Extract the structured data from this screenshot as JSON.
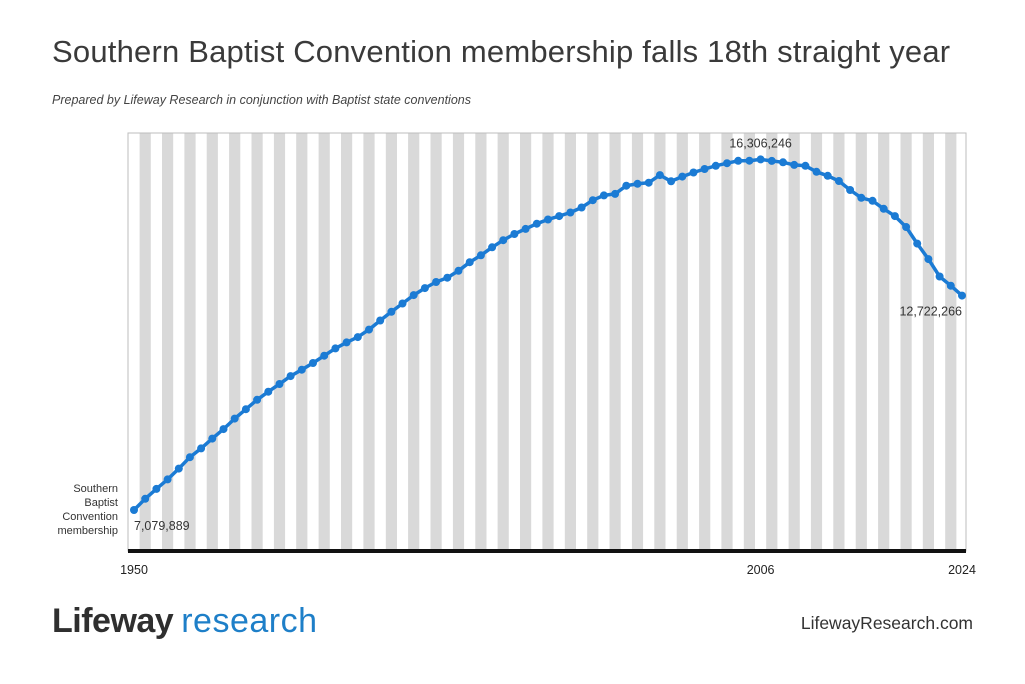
{
  "header": {
    "title": "Southern Baptist Convention membership falls 18th straight year",
    "subtitle": "Prepared by Lifeway Research in conjunction with Baptist state conventions"
  },
  "footer": {
    "brand_part1": "Lifeway",
    "brand_part2": "research",
    "site": "LifewayResearch.com"
  },
  "colors": {
    "line": "#1b7bd4",
    "stripe": "#d9d9d9",
    "baseline": "#111111",
    "brand_blue": "#1e7fc8"
  },
  "chart_data": {
    "type": "line",
    "title": "Southern Baptist Convention membership falls 18th straight year",
    "series_label": [
      "Southern",
      "Baptist",
      "Convention",
      "membership"
    ],
    "x_ticks": [
      "1950",
      "2006",
      "2024"
    ],
    "x_range": [
      1950,
      2024
    ],
    "y_range": [
      6000000,
      17000000
    ],
    "grid": "alternating vertical bands per year",
    "annotations": [
      {
        "year": 1950,
        "label": "7,079,889",
        "position": "below-right"
      },
      {
        "year": 2006,
        "label": "16,306,246",
        "position": "above"
      },
      {
        "year": 2024,
        "label": "12,722,266",
        "position": "below-left"
      }
    ],
    "series": [
      {
        "x": [
          1950,
          1951,
          1952,
          1953,
          1954,
          1955,
          1956,
          1957,
          1958,
          1959,
          1960,
          1961,
          1962,
          1963,
          1964,
          1965,
          1966,
          1967,
          1968,
          1969,
          1970,
          1971,
          1972,
          1973,
          1974,
          1975,
          1976,
          1977,
          1978,
          1979,
          1980,
          1981,
          1982,
          1983,
          1984,
          1985,
          1986,
          1987,
          1988,
          1989,
          1990,
          1991,
          1992,
          1993,
          1994,
          1995,
          1996,
          1997,
          1998,
          1999,
          2000,
          2001,
          2002,
          2003,
          2004,
          2005,
          2006,
          2007,
          2008,
          2009,
          2010,
          2011,
          2012,
          2013,
          2014,
          2015,
          2016,
          2017,
          2018,
          2019,
          2020,
          2021,
          2022,
          2023,
          2024
        ],
        "values": [
          7079889,
          7373498,
          7634493,
          7883708,
          8169491,
          8467439,
          8700481,
          8956756,
          9206758,
          9485276,
          9731591,
          9978139,
          10191303,
          10395940,
          10601515,
          10770573,
          10947389,
          11140657,
          11332229,
          11489613,
          11629880,
          11826463,
          12065333,
          12295400,
          12513378,
          12733124,
          12917992,
          13078239,
          13191394,
          13372757,
          13600126,
          13782644,
          13991709,
          14178051,
          14341822,
          14477364,
          14613638,
          14722617,
          14812844,
          14907826,
          15038409,
          15232347,
          15358842,
          15398642,
          15614060,
          15663296,
          15691964,
          15891514,
          15729356,
          15851756,
          15960308,
          16052920,
          16137736,
          16205050,
          16267494,
          16270315,
          16306246,
          16266920,
          16228438,
          16160088,
          16136044,
          15978112,
          15872404,
          15735640,
          15499173,
          15294764,
          15216978,
          15005638,
          14813234,
          14525579,
          14089947,
          13680493,
          13223122,
          12982090,
          12722266
        ]
      }
    ]
  }
}
